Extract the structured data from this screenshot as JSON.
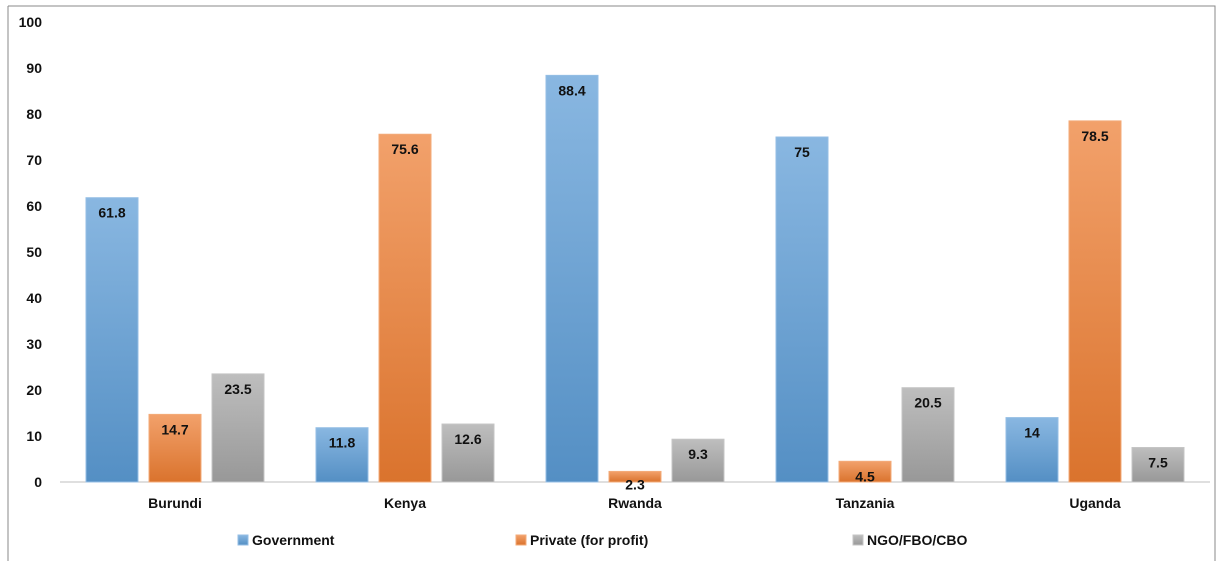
{
  "chart_data": {
    "type": "bar",
    "title": "",
    "xlabel": "",
    "ylabel": "",
    "ylim": [
      0,
      100
    ],
    "yticks": [
      0,
      10,
      20,
      30,
      40,
      50,
      60,
      70,
      80,
      90,
      100
    ],
    "grid": false,
    "legend_position": "bottom",
    "categories": [
      "Burundi",
      "Kenya",
      "Rwanda",
      "Tanzania",
      "Uganda"
    ],
    "series": [
      {
        "name": "Government",
        "color": "#5b9bd5",
        "values": [
          61.8,
          11.8,
          88.4,
          75,
          14
        ]
      },
      {
        "name": "Private (for profit)",
        "color": "#ed7d31",
        "values": [
          14.7,
          75.6,
          2.3,
          4.5,
          78.5
        ]
      },
      {
        "name": "NGO/FBO/CBO",
        "color": "#a5a5a5",
        "values": [
          23.5,
          12.6,
          9.3,
          20.5,
          7.5
        ]
      }
    ]
  }
}
